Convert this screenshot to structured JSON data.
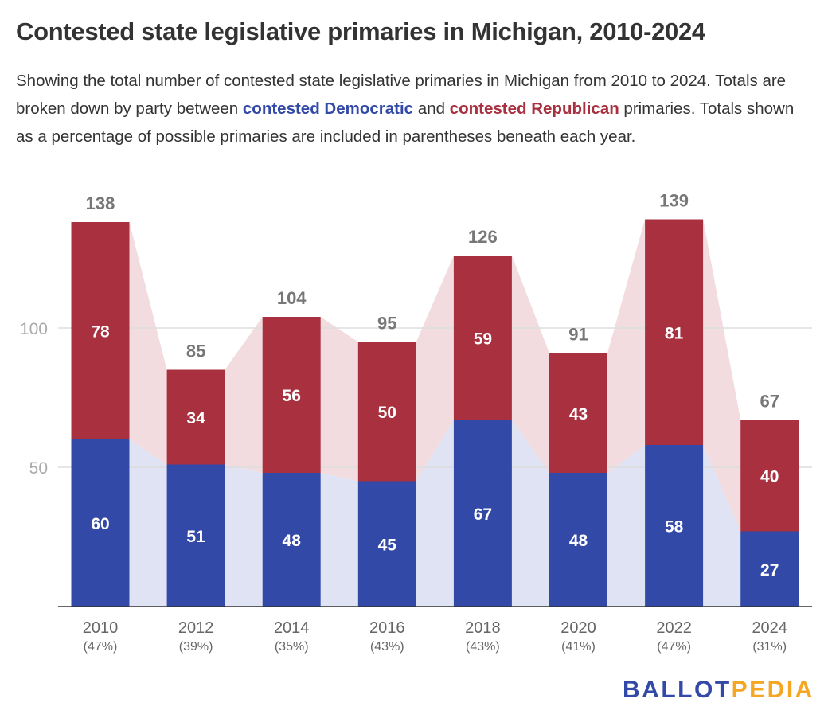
{
  "title": "Contested state legislative primaries in Michigan, 2010-2024",
  "subtitle": {
    "part1": "Showing the total number of contested state legislative primaries in Michigan from 2010 to 2024. Totals are broken down by party between ",
    "dem_label": "contested Democratic",
    "part2": " and ",
    "rep_label": "contested Republican",
    "part3": " primaries. Totals shown as a percentage of possible primaries are included in parentheses beneath each year."
  },
  "colors": {
    "democratic": "#3349a8",
    "republican": "#a8303f",
    "dem_band": "#e0e3f3",
    "rep_band": "#f2dcdf"
  },
  "logo": {
    "part1": "BALLOT",
    "part2": "PEDIA"
  },
  "chart_data": {
    "type": "bar",
    "stacked": true,
    "categories": [
      "2010",
      "2012",
      "2014",
      "2016",
      "2018",
      "2020",
      "2022",
      "2024"
    ],
    "category_sublabels": [
      "(47%)",
      "(39%)",
      "(35%)",
      "(43%)",
      "(43%)",
      "(41%)",
      "(47%)",
      "(31%)"
    ],
    "series": [
      {
        "name": "contested Democratic",
        "values": [
          60,
          51,
          48,
          45,
          67,
          48,
          58,
          27
        ]
      },
      {
        "name": "contested Republican",
        "values": [
          78,
          34,
          56,
          50,
          59,
          43,
          81,
          40
        ]
      }
    ],
    "totals": [
      138,
      85,
      104,
      95,
      126,
      91,
      139,
      67
    ],
    "yticks": [
      50,
      100
    ],
    "ylim": [
      0,
      140
    ],
    "grid": true
  }
}
